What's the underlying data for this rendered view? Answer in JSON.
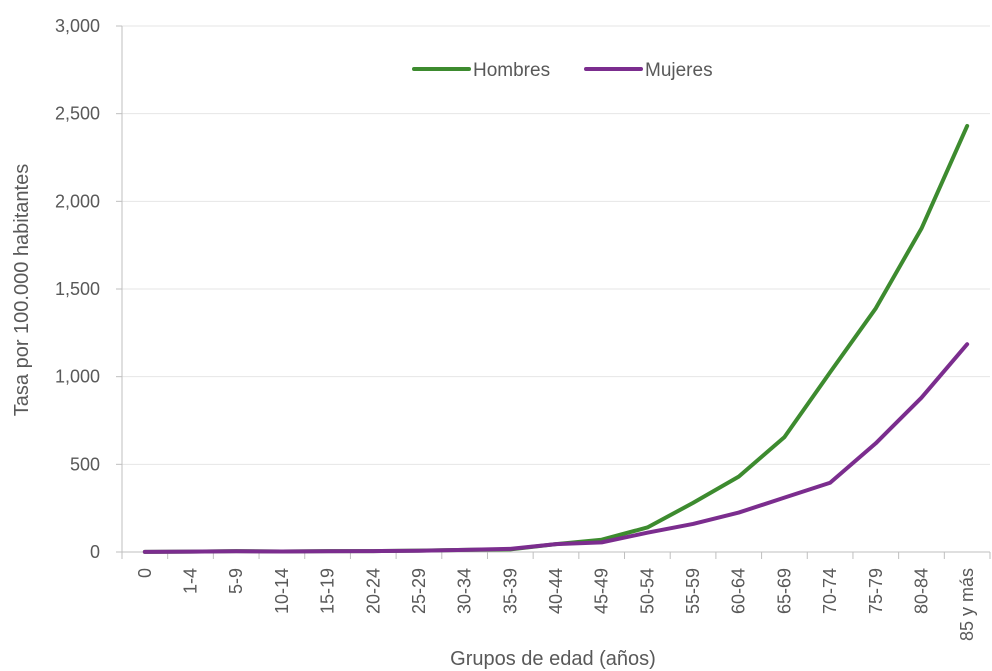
{
  "chart_data": {
    "type": "line",
    "title": "",
    "xlabel": "Grupos de edad (años)",
    "ylabel": "Tasa por 100.000 habitantes",
    "ylim": [
      0,
      3000
    ],
    "yticks": [
      0,
      500,
      1000,
      1500,
      2000,
      2500,
      3000
    ],
    "ytick_labels": [
      "0",
      "500",
      "1,000",
      "1,500",
      "2,000",
      "2,500",
      "3,000"
    ],
    "grid": true,
    "legend_position": "top-center",
    "categories": [
      "0",
      "1-4",
      "5-9",
      "10-14",
      "15-19",
      "20-24",
      "25-29",
      "30-34",
      "35-39",
      "40-44",
      "45-49",
      "50-54",
      "55-59",
      "60-64",
      "65-69",
      "70-74",
      "75-79",
      "80-84",
      "85 y más"
    ],
    "series": [
      {
        "name": "Hombres",
        "color": "#3d8b2f",
        "values": [
          1,
          2,
          5,
          3,
          5,
          5,
          8,
          12,
          15,
          45,
          70,
          140,
          280,
          430,
          655,
          1025,
          1390,
          1845,
          2430
        ]
      },
      {
        "name": "Mujeres",
        "color": "#7b2d8e",
        "values": [
          1,
          2,
          4,
          3,
          4,
          5,
          7,
          12,
          18,
          45,
          55,
          110,
          160,
          225,
          310,
          395,
          620,
          880,
          1185
        ]
      }
    ]
  }
}
